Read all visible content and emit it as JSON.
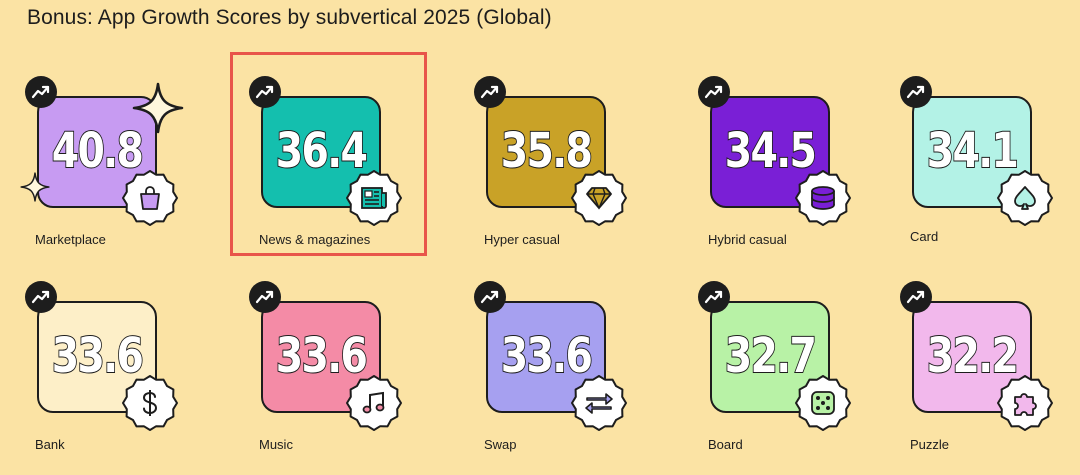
{
  "title": "Bonus: App Growth Scores by subvertical 2025 (Global)",
  "chart_data": {
    "type": "table",
    "title": "Bonus: App Growth Scores by subvertical 2025 (Global)",
    "categories": [
      "Marketplace",
      "News & magazines",
      "Hyper casual",
      "Hybrid casual",
      "Card",
      "Bank",
      "Music",
      "Swap",
      "Board",
      "Puzzle"
    ],
    "values": [
      40.8,
      36.4,
      35.8,
      34.5,
      34.1,
      33.6,
      33.6,
      33.6,
      32.7,
      32.2
    ],
    "highlighted": "News & magazines"
  },
  "tiles": [
    {
      "label": "Marketplace",
      "score": "40.8",
      "color": "#C79BF2",
      "icon": "shopping-bag-icon"
    },
    {
      "label": "News & magazines",
      "score": "36.4",
      "color": "#14BFAE",
      "icon": "newspaper-icon"
    },
    {
      "label": "Hyper casual",
      "score": "35.8",
      "color": "#C9A227",
      "icon": "diamond-icon"
    },
    {
      "label": "Hybrid casual",
      "score": "34.5",
      "color": "#7A1FD6",
      "icon": "coin-stack-icon"
    },
    {
      "label": "Card",
      "score": "34.1",
      "color": "#B3F2E6",
      "icon": "spade-icon"
    },
    {
      "label": "Bank",
      "score": "33.6",
      "color": "#FDEFC8",
      "icon": "dollar-icon"
    },
    {
      "label": "Music",
      "score": "33.6",
      "color": "#F48BA6",
      "icon": "music-note-icon"
    },
    {
      "label": "Swap",
      "score": "33.6",
      "color": "#A6A0F0",
      "icon": "swap-arrows-icon"
    },
    {
      "label": "Board",
      "score": "32.7",
      "color": "#B8F2A6",
      "icon": "dice-icon"
    },
    {
      "label": "Puzzle",
      "score": "32.2",
      "color": "#F2B8EC",
      "icon": "puzzle-piece-icon"
    }
  ]
}
